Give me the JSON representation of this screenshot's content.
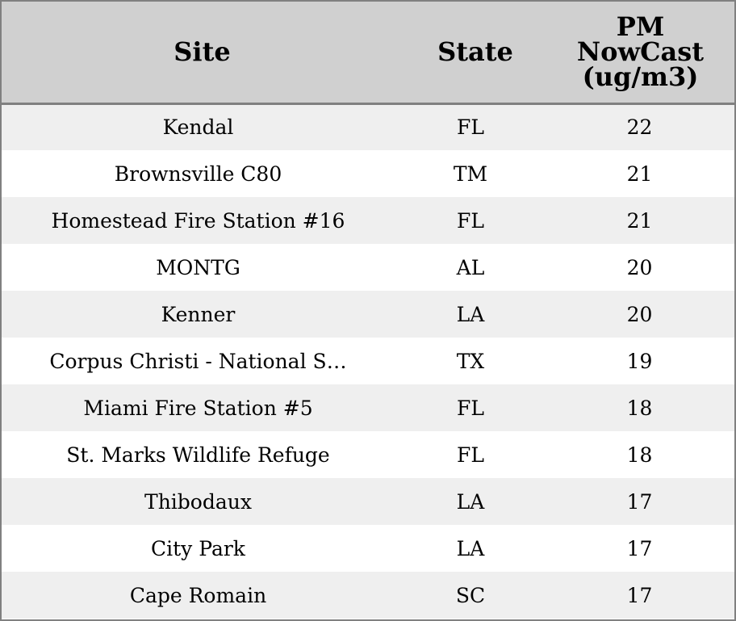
{
  "chart_data": {
    "type": "table",
    "columns": [
      "Site",
      "State",
      "PM NowCast (ug/m3)"
    ],
    "rows": [
      {
        "site": "Kendal",
        "state": "FL",
        "pm": 22
      },
      {
        "site": "Brownsville C80",
        "state": "TM",
        "pm": 21
      },
      {
        "site": "Homestead Fire Station #16",
        "state": "FL",
        "pm": 21
      },
      {
        "site": "MONTG",
        "state": "AL",
        "pm": 20
      },
      {
        "site": "Kenner",
        "state": "LA",
        "pm": 20
      },
      {
        "site": "Corpus Christi - National S…",
        "state": "TX",
        "pm": 19
      },
      {
        "site": "Miami Fire Station #5",
        "state": "FL",
        "pm": 18
      },
      {
        "site": "St. Marks Wildlife Refuge",
        "state": "FL",
        "pm": 18
      },
      {
        "site": "Thibodaux",
        "state": "LA",
        "pm": 17
      },
      {
        "site": "City Park",
        "state": "LA",
        "pm": 17
      },
      {
        "site": "Cape Romain",
        "state": "SC",
        "pm": 17
      }
    ]
  },
  "header": {
    "site_label": "Site",
    "state_label": "State",
    "pm_label_line1": "PM",
    "pm_label_line2": "NowCast",
    "pm_label_line3": "(ug/m3)"
  },
  "colors": {
    "header_bg": "#d0d0d0",
    "row_stripe": "#efefef",
    "row_plain": "#ffffff",
    "border": "#808080"
  }
}
